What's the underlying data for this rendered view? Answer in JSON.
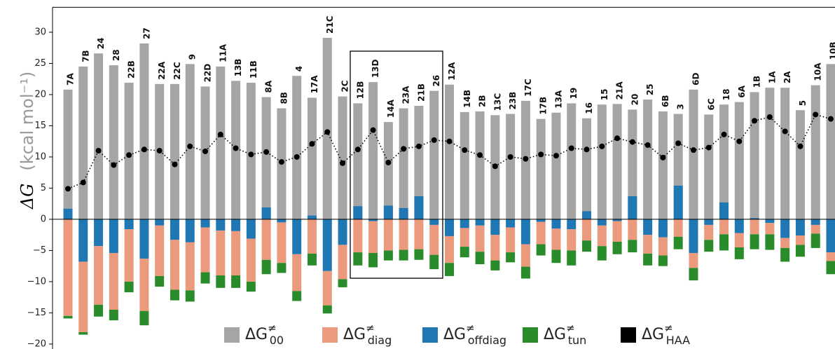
{
  "chart_data": {
    "type": "bar",
    "stacked": true,
    "ylabel": {
      "symbol": "ΔG",
      "unit": "(kcal mol⁻¹)"
    },
    "categories": [
      "7A",
      "7B",
      "24",
      "28",
      "22B",
      "27",
      "22A",
      "22C",
      "9",
      "22D",
      "11A",
      "13B",
      "11B",
      "8A",
      "8B",
      "4",
      "17A",
      "21C",
      "2C",
      "12B",
      "13D",
      "14A",
      "23A",
      "21B",
      "26",
      "12A",
      "14B",
      "2B",
      "13C",
      "23B",
      "17C",
      "17B",
      "13A",
      "19",
      "16",
      "15",
      "21A",
      "20",
      "25",
      "6B",
      "3",
      "6D",
      "6C",
      "18",
      "6A",
      "1B",
      "1A",
      "2A",
      "5",
      "10A",
      "10B"
    ],
    "ylim": [
      -20.8,
      34
    ],
    "yticks": [
      {
        "value": -20,
        "label": "−20"
      },
      {
        "value": -15,
        "label": "−15"
      },
      {
        "value": -10,
        "label": "−10"
      },
      {
        "value": -5,
        "label": "−5"
      },
      0,
      5,
      10,
      15,
      20,
      25,
      30
    ],
    "series": [
      {
        "name": "ΔG",
        "sup": "≠",
        "sub": "00",
        "color": "#a5a5a5",
        "values": [
          20.8,
          24.5,
          26.6,
          24.7,
          21.9,
          28.2,
          21.7,
          21.7,
          24.9,
          21.3,
          24.5,
          22.2,
          21.9,
          19.6,
          17.8,
          23.0,
          19.5,
          29.1,
          19.7,
          18.6,
          22.0,
          15.6,
          17.8,
          18.2,
          20.6,
          21.6,
          17.2,
          17.3,
          16.7,
          16.9,
          19.0,
          16.1,
          17.1,
          18.6,
          16.2,
          18.4,
          18.5,
          17.6,
          19.2,
          17.3,
          16.9,
          20.8,
          16.8,
          18.4,
          18.8,
          20.4,
          21.1,
          21.1,
          17.5,
          21.5,
          24.9
        ]
      },
      {
        "name": "ΔG",
        "sup": "≠",
        "sub": "diag",
        "color": "#ec9a7d",
        "values": [
          -15.5,
          -11.3,
          -9.4,
          -9.1,
          -8.4,
          -8.4,
          -8.1,
          -8.0,
          -7.7,
          -7.2,
          -7.2,
          -7.1,
          -6.9,
          -6.5,
          -6.5,
          -5.9,
          -5.5,
          -5.5,
          -5.5,
          -5.3,
          -5.1,
          -5.0,
          -4.9,
          -4.8,
          -4.8,
          -4.3,
          -3.0,
          -4.2,
          -4.1,
          -4.0,
          -3.6,
          -3.6,
          -3.4,
          -3.4,
          -3.4,
          -3.3,
          -3.3,
          -3.3,
          -3.0,
          -2.9,
          -2.8,
          -2.4,
          -2.4,
          -2.4,
          -2.3,
          -2.4,
          -1.8,
          -1.6,
          -1.5,
          -1.4,
          -1.4
        ]
      },
      {
        "name": "ΔG",
        "sup": "≠",
        "sub": "offdiag",
        "color": "#1f77b4",
        "values": [
          1.7,
          -6.8,
          -4.3,
          -5.4,
          -1.6,
          -6.3,
          -1.0,
          -3.3,
          -3.7,
          -1.3,
          -1.8,
          -1.9,
          -3.1,
          1.9,
          -0.5,
          -5.6,
          0.6,
          -8.3,
          -4.1,
          2.1,
          -0.3,
          2.2,
          1.8,
          3.7,
          -0.9,
          -2.7,
          -1.4,
          -1.0,
          -2.5,
          -1.3,
          -4.0,
          -0.4,
          -1.5,
          -1.6,
          1.3,
          -1.0,
          -0.3,
          3.7,
          -2.5,
          -2.9,
          5.4,
          -5.4,
          -0.9,
          2.7,
          -2.2,
          0.2,
          -0.6,
          -3.0,
          -2.6,
          -0.9,
          -5.3
        ]
      },
      {
        "name": "ΔG",
        "sup": "≠",
        "sub": "tun",
        "color": "#2a8b2a",
        "values": [
          -0.4,
          -0.4,
          -1.9,
          -1.7,
          -1.7,
          -2.3,
          -1.7,
          -1.7,
          -1.8,
          -1.8,
          -2.0,
          -2.0,
          -1.6,
          -2.3,
          -1.6,
          -1.6,
          -1.9,
          -1.3,
          -1.3,
          -2.1,
          -2.3,
          -1.6,
          -1.7,
          -1.7,
          -2.3,
          -2.1,
          -1.7,
          -2.0,
          -1.6,
          -1.6,
          -1.9,
          -1.8,
          -2.1,
          -2.4,
          -1.8,
          -2.3,
          -2.0,
          -2.0,
          -1.9,
          -1.7,
          -2.0,
          -2.0,
          -1.9,
          -2.6,
          -1.9,
          -2.4,
          -2.5,
          -2.2,
          -1.9,
          -2.3,
          -2.1
        ]
      },
      {
        "name": "ΔG",
        "sup": "≠",
        "sub": "HAA",
        "color": "#000000",
        "type": "line",
        "values": [
          4.9,
          5.9,
          11.0,
          8.7,
          10.3,
          11.2,
          11.0,
          8.8,
          11.7,
          10.9,
          13.6,
          11.4,
          10.4,
          10.8,
          9.2,
          10.0,
          12.1,
          14.0,
          9.0,
          11.2,
          14.3,
          9.1,
          11.3,
          11.7,
          12.7,
          12.5,
          11.1,
          10.3,
          8.5,
          10.0,
          9.7,
          10.4,
          10.2,
          11.4,
          11.2,
          11.7,
          13.0,
          12.4,
          11.9,
          9.9,
          12.2,
          11.1,
          11.5,
          13.6,
          12.5,
          15.8,
          16.4,
          14.1,
          11.7,
          16.8,
          16.1
        ]
      }
    ]
  }
}
